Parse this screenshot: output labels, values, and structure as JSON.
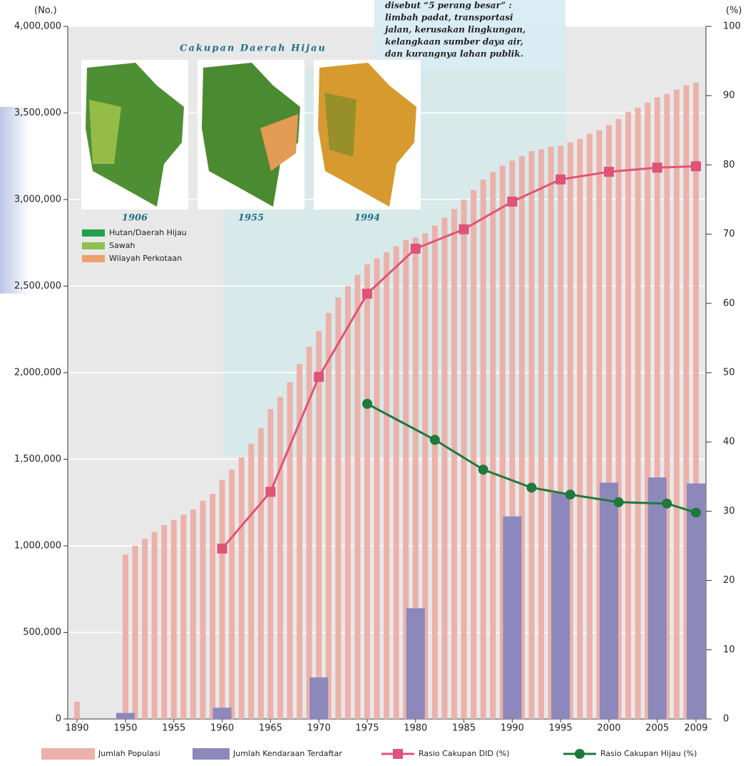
{
  "chart_data": {
    "type": "bar",
    "y_unit_label": "(No.)",
    "y2_unit_label": "(%)",
    "ylim": [
      0,
      4000000
    ],
    "yticks": [
      0,
      {
        "value": 500000,
        "label": "500,000"
      },
      {
        "value": 1000000,
        "label": "1,000,000"
      },
      {
        "value": 1500000,
        "label": "1,500,000"
      },
      {
        "value": 2000000,
        "label": "2,000,000"
      },
      {
        "value": 2500000,
        "label": "2,500,000"
      },
      {
        "value": 3000000,
        "label": "3,000,000"
      },
      {
        "value": 3500000,
        "label": "3,500,000"
      },
      {
        "value": 4000000,
        "label": "4,000,000"
      }
    ],
    "y2lim": [
      0,
      100
    ],
    "y2ticks": [
      0,
      10,
      20,
      30,
      40,
      50,
      60,
      70,
      80,
      90,
      100
    ],
    "xlim": [
      1890,
      2009
    ],
    "xticks": [
      1890,
      1950,
      1955,
      1960,
      1965,
      1970,
      1975,
      1980,
      1985,
      1990,
      1995,
      2000,
      2005,
      2009
    ],
    "x_axis_break": true,
    "grid": true,
    "series": [
      {
        "name": "Jumlah Populasi",
        "type": "bar",
        "color": "#ebb1aa",
        "x": [
          1890,
          1950,
          1951,
          1952,
          1953,
          1954,
          1955,
          1956,
          1957,
          1958,
          1959,
          1960,
          1961,
          1962,
          1963,
          1964,
          1965,
          1966,
          1967,
          1968,
          1969,
          1970,
          1971,
          1972,
          1973,
          1974,
          1975,
          1976,
          1977,
          1978,
          1979,
          1980,
          1981,
          1982,
          1983,
          1984,
          1985,
          1986,
          1987,
          1988,
          1989,
          1990,
          1991,
          1992,
          1993,
          1994,
          1995,
          1996,
          1997,
          1998,
          1999,
          2000,
          2001,
          2002,
          2003,
          2004,
          2005,
          2006,
          2007,
          2008,
          2009
        ],
        "values": [
          100000,
          950000,
          1000000,
          1040000,
          1080000,
          1120000,
          1150000,
          1180000,
          1210000,
          1260000,
          1300000,
          1380000,
          1440000,
          1510000,
          1590000,
          1680000,
          1790000,
          1860000,
          1945000,
          2050000,
          2150000,
          2240000,
          2345000,
          2435000,
          2500000,
          2565000,
          2625000,
          2660000,
          2695000,
          2730000,
          2765000,
          2780000,
          2805000,
          2850000,
          2895000,
          2945000,
          3000000,
          3055000,
          3115000,
          3160000,
          3195000,
          3225000,
          3250000,
          3280000,
          3290000,
          3305000,
          3310000,
          3330000,
          3350000,
          3380000,
          3400000,
          3430000,
          3465000,
          3505000,
          3530000,
          3560000,
          3590000,
          3610000,
          3635000,
          3660000,
          3675000
        ]
      },
      {
        "name": "Jumlah Kendaraan Terdaftar",
        "type": "bar",
        "color": "#8c88bc",
        "wide": true,
        "x": [
          1950,
          1960,
          1970,
          1980,
          1990,
          1995,
          2000,
          2005,
          2009
        ],
        "values": [
          35000,
          65000,
          240000,
          640000,
          1170000,
          1305000,
          1365000,
          1395000,
          1360000
        ]
      },
      {
        "name": "Rasio Cakupan DID (%)",
        "type": "line",
        "marker": "square",
        "color": "#e05378",
        "axis": "y2",
        "x": [
          1960,
          1965,
          1970,
          1975,
          1980,
          1985,
          1990,
          1995,
          2000,
          2005,
          2009
        ],
        "values": [
          24.6,
          32.8,
          49.4,
          61.4,
          67.9,
          70.7,
          74.7,
          77.9,
          79.0,
          79.6,
          79.8
        ]
      },
      {
        "name": "Rasio Cakupan Hijau (%)",
        "type": "line",
        "marker": "circle",
        "color": "#1d7a3a",
        "axis": "y2",
        "x": [
          1975,
          1982,
          1987,
          1992,
          1996,
          2001,
          2006,
          2009
        ],
        "values": [
          45.5,
          40.3,
          36.0,
          33.4,
          32.4,
          31.3,
          31.1,
          29.8
        ]
      }
    ],
    "annotation": [
      "disebut “5 perang besar” :",
      "limbah padat, transportasi",
      "jalan, kerusakan lingkungan,",
      "kelangkaan sumber daya air,",
      "dan kurangnya lahan publik."
    ],
    "inset": {
      "title": "Cakupan Daerah Hijau",
      "years": [
        "1906",
        "1955",
        "1994"
      ],
      "legend": [
        {
          "name": "Hutan/Daerah Hijau",
          "color": "#21a14a"
        },
        {
          "name": "Sawah",
          "color": "#8cc152"
        },
        {
          "name": "Wilayah Perkotaan",
          "color": "#eda06a"
        }
      ]
    }
  }
}
